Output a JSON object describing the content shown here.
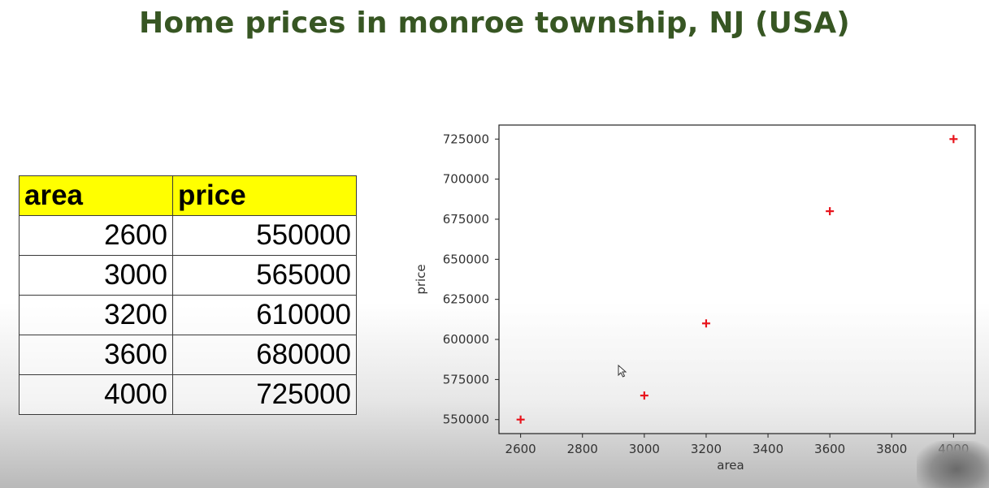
{
  "title": "Home prices in monroe township, NJ (USA)",
  "table": {
    "headers": [
      "area",
      "price"
    ],
    "rows": [
      [
        "2600",
        "550000"
      ],
      [
        "3000",
        "565000"
      ],
      [
        "3200",
        "610000"
      ],
      [
        "3600",
        "680000"
      ],
      [
        "4000",
        "725000"
      ]
    ]
  },
  "chart_data": {
    "type": "scatter",
    "x": [
      2600,
      3000,
      3200,
      3600,
      4000
    ],
    "y": [
      550000,
      565000,
      610000,
      680000,
      725000
    ],
    "xlabel": "area",
    "ylabel": "price",
    "xlim": [
      2530,
      4070
    ],
    "ylim": [
      541250,
      733750
    ],
    "xticks": [
      2600,
      2800,
      3000,
      3200,
      3400,
      3600,
      3800,
      4000
    ],
    "yticks": [
      550000,
      575000,
      600000,
      625000,
      650000,
      675000,
      700000,
      725000
    ],
    "marker": "+",
    "marker_color": "#e8141c",
    "grid": false
  }
}
